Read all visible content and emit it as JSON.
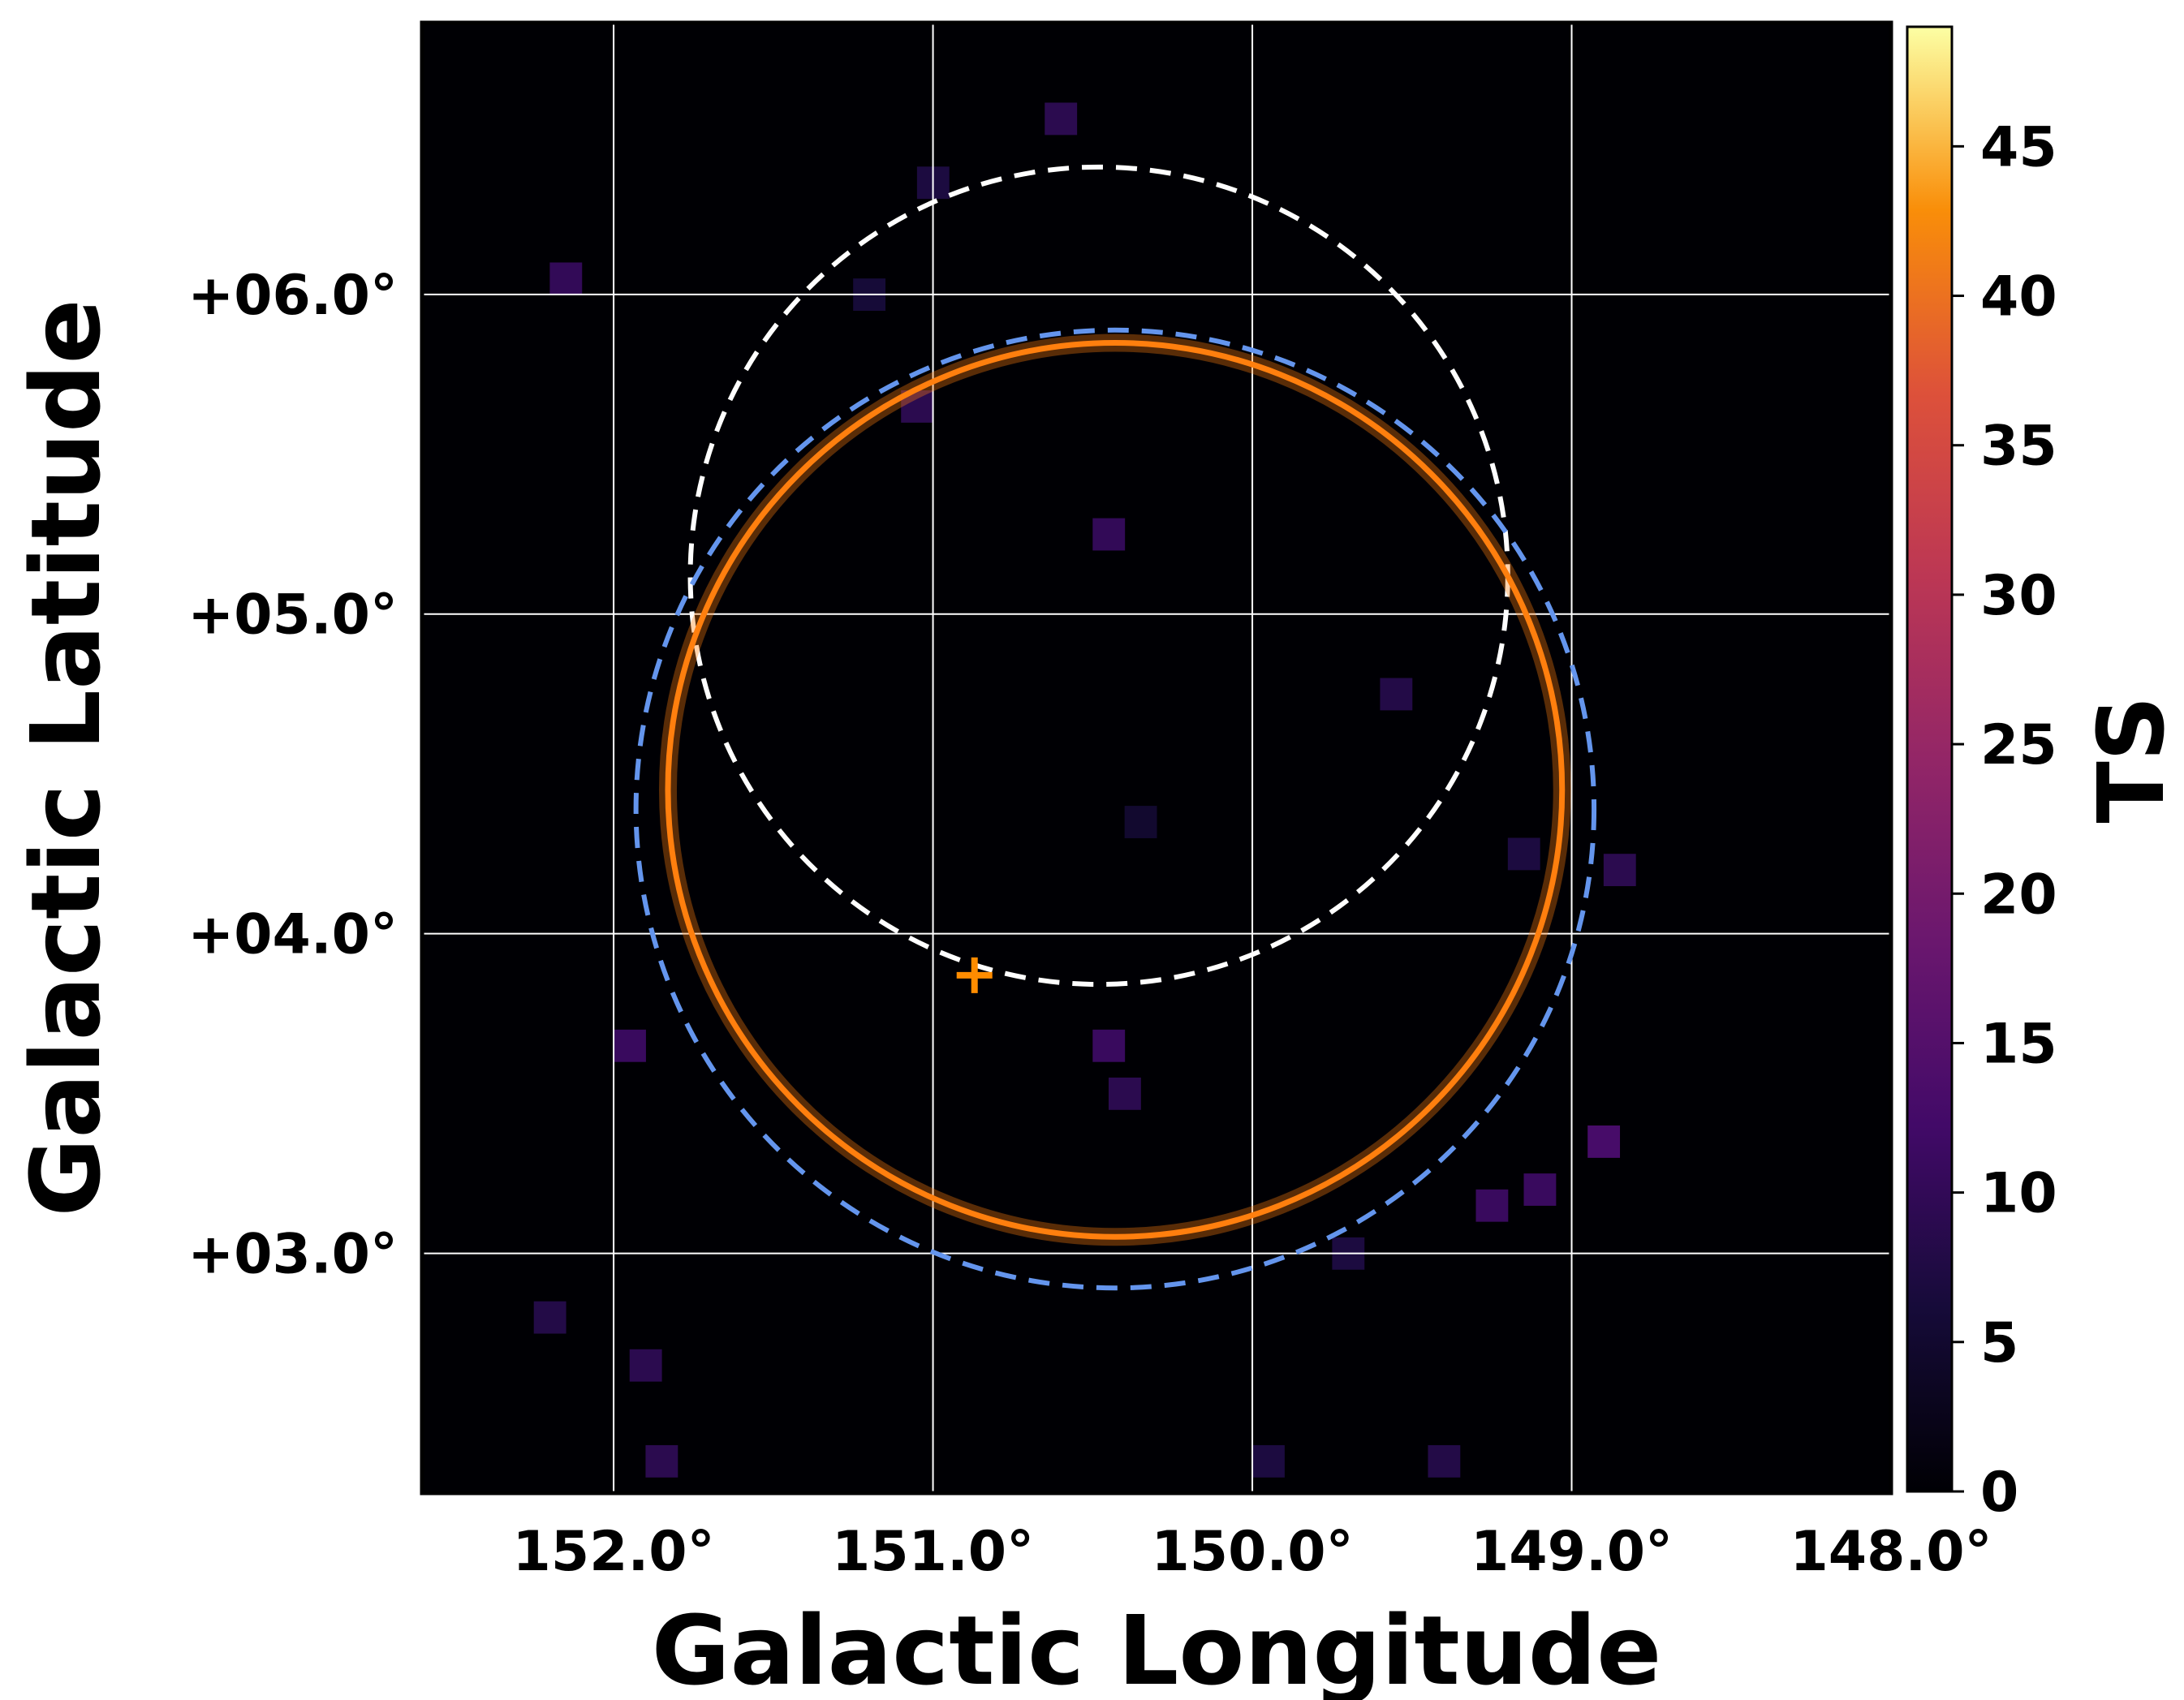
{
  "chart_data": {
    "type": "heatmap",
    "title": "",
    "xlabel": "Galactic Longitude",
    "ylabel": "Galactic Latitude",
    "x_range": [
      152.6,
      148.0
    ],
    "y_range": [
      2.25,
      6.85
    ],
    "x_reversed": true,
    "x_ticks": [
      152.0,
      151.0,
      150.0,
      149.0,
      148.0
    ],
    "x_tick_labels": [
      "152.0°",
      "151.0°",
      "150.0°",
      "149.0°",
      "148.0°"
    ],
    "y_ticks": [
      3.0,
      4.0,
      5.0,
      6.0
    ],
    "y_tick_labels": [
      "+03.0°",
      "+04.0°",
      "+05.0°",
      "+06.0°"
    ],
    "grid": true,
    "colormap": "inferno",
    "colorbar": {
      "label": "TS",
      "min": 0,
      "max": 49,
      "ticks": [
        0,
        5,
        10,
        15,
        20,
        25,
        30,
        35,
        40,
        45
      ],
      "tick_labels": [
        "0",
        "5",
        "10",
        "15",
        "20",
        "25",
        "30",
        "35",
        "40",
        "45"
      ]
    },
    "ts_pixels": [
      {
        "l": 150.6,
        "b": 6.55,
        "ts": 9
      },
      {
        "l": 151.0,
        "b": 6.35,
        "ts": 7
      },
      {
        "l": 151.2,
        "b": 6.0,
        "ts": 6
      },
      {
        "l": 152.15,
        "b": 6.05,
        "ts": 10
      },
      {
        "l": 151.05,
        "b": 5.65,
        "ts": 9
      },
      {
        "l": 150.45,
        "b": 5.25,
        "ts": 10
      },
      {
        "l": 150.35,
        "b": 4.35,
        "ts": 5
      },
      {
        "l": 149.55,
        "b": 4.75,
        "ts": 8
      },
      {
        "l": 149.15,
        "b": 4.25,
        "ts": 7
      },
      {
        "l": 148.85,
        "b": 4.2,
        "ts": 9
      },
      {
        "l": 148.9,
        "b": 3.35,
        "ts": 13
      },
      {
        "l": 149.1,
        "b": 3.2,
        "ts": 11
      },
      {
        "l": 149.25,
        "b": 3.15,
        "ts": 11
      },
      {
        "l": 150.45,
        "b": 3.65,
        "ts": 11
      },
      {
        "l": 150.4,
        "b": 3.5,
        "ts": 9
      },
      {
        "l": 151.95,
        "b": 3.65,
        "ts": 11
      },
      {
        "l": 152.2,
        "b": 2.8,
        "ts": 8
      },
      {
        "l": 151.9,
        "b": 2.65,
        "ts": 9
      },
      {
        "l": 151.85,
        "b": 2.35,
        "ts": 9
      },
      {
        "l": 149.95,
        "b": 2.35,
        "ts": 7
      },
      {
        "l": 149.4,
        "b": 2.35,
        "ts": 8
      },
      {
        "l": 149.7,
        "b": 3.0,
        "ts": 7
      }
    ],
    "overlays": [
      {
        "shape": "circle",
        "style": "dashed",
        "color": "#ffffff",
        "center_l": 150.48,
        "center_b": 5.12,
        "radius_deg": 1.28
      },
      {
        "shape": "circle",
        "style": "dashed",
        "color": "#6495ed",
        "center_l": 150.43,
        "center_b": 4.39,
        "radius_deg": 1.5
      },
      {
        "shape": "circle",
        "style": "solid",
        "color": "#ff7f0e",
        "center_l": 150.43,
        "center_b": 4.45,
        "radius_deg": 1.4
      },
      {
        "shape": "marker",
        "style": "plus",
        "color": "#ff8c00",
        "l": 150.87,
        "b": 3.87
      }
    ]
  }
}
